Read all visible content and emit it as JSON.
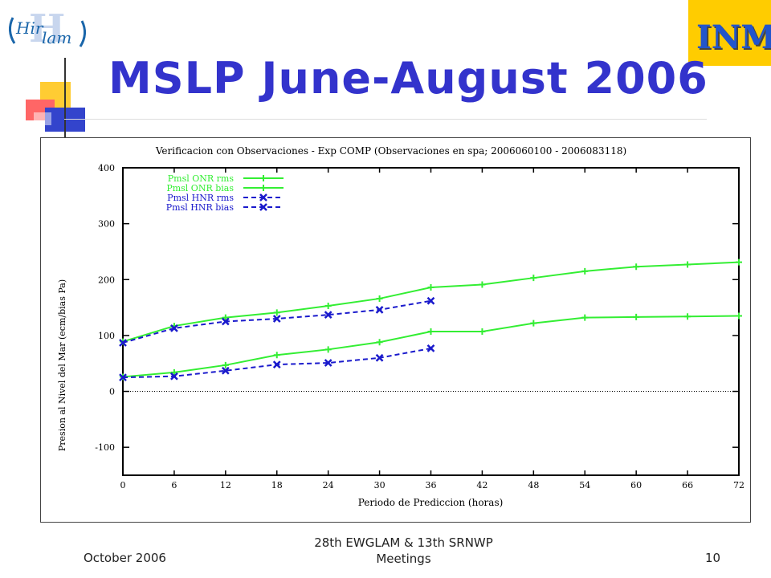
{
  "slide": {
    "title": "MSLP June-August 2006",
    "logo_left_text": "Hirlam",
    "logo_right_text": "INM"
  },
  "footer": {
    "date": "October  2006",
    "center": "28th EWGLAM & 13th SRNWP Meetings",
    "page": "10"
  },
  "chart_data": {
    "type": "line",
    "title": "Verificacion con Observaciones - Exp COMP (Observaciones en spa; 2006060100 - 2006083118)",
    "xlabel": "Periodo de Prediccion (horas)",
    "ylabel": "Presion al Nivel del Mar (ecm/bias Pa)",
    "xlim": [
      0,
      72
    ],
    "ylim": [
      -150,
      400
    ],
    "x_ticks": [
      "0",
      "6",
      "12",
      "18",
      "24",
      "30",
      "36",
      "42",
      "48",
      "54",
      "60",
      "66",
      "72"
    ],
    "y_ticks": [
      "-100",
      "0",
      "100",
      "200",
      "300",
      "400"
    ],
    "legend_position": "top-left",
    "colors": {
      "onr": "#33ee33",
      "hnr": "#1a1acc"
    },
    "reference_line_y": 0,
    "series": [
      {
        "name": "Pmsl ONR rms",
        "color": "#33ee33",
        "marker": "+",
        "dash": "solid",
        "x": [
          0,
          6,
          12,
          18,
          24,
          30,
          36,
          42,
          48,
          54,
          60,
          66,
          72
        ],
        "values": [
          89,
          117,
          132,
          141,
          153,
          166,
          186,
          191,
          203,
          215,
          223,
          227,
          231
        ]
      },
      {
        "name": "Pmsl ONR bias",
        "color": "#33ee33",
        "marker": "+",
        "dash": "solid",
        "x": [
          0,
          6,
          12,
          18,
          24,
          30,
          36,
          42,
          48,
          54,
          60,
          66,
          72
        ],
        "values": [
          26,
          34,
          47,
          65,
          75,
          88,
          107,
          107,
          122,
          132,
          133,
          134,
          135
        ]
      },
      {
        "name": "Pmsl HNR rms",
        "color": "#1a1acc",
        "marker": "x",
        "dash": "dashed",
        "x": [
          0,
          6,
          12,
          18,
          24,
          30,
          36
        ],
        "values": [
          87,
          113,
          125,
          130,
          137,
          146,
          162
        ]
      },
      {
        "name": "Pmsl HNR bias",
        "color": "#1a1acc",
        "marker": "x",
        "dash": "dashed",
        "x": [
          0,
          6,
          12,
          18,
          24,
          30,
          36
        ],
        "values": [
          25,
          27,
          37,
          48,
          51,
          60,
          77
        ]
      }
    ]
  }
}
